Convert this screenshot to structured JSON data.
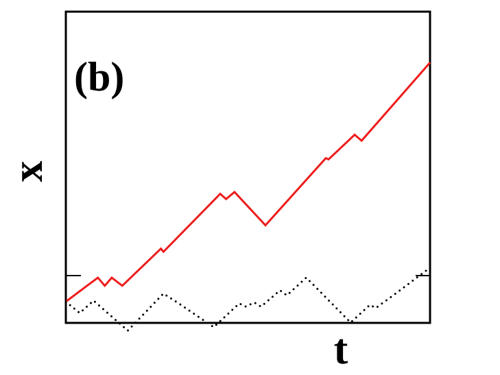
{
  "chart_data": {
    "type": "line",
    "panel_label": "(b)",
    "title": "",
    "xlabel": "t",
    "ylabel": "x",
    "xlim": [
      0,
      100
    ],
    "ylim": [
      -6,
      82
    ],
    "grid": false,
    "legend": "none",
    "reference_y": 0,
    "x_ticks": [],
    "y_ticks": [],
    "series": [
      {
        "color": "#ee1c1c",
        "style": "solid",
        "x": [
          0,
          8.8,
          10.7,
          12.6,
          15.5,
          26.1,
          26.8,
          42.4,
          44.0,
          46.3,
          54.8,
          71.4,
          72.1,
          79.3,
          81.2,
          100
        ],
        "y": [
          0,
          6.8,
          4.5,
          6.8,
          4.5,
          15.0,
          14.1,
          30.5,
          29.0,
          31.0,
          21.6,
          40.6,
          40.2,
          47.2,
          45.5,
          67.6
        ]
      },
      {
        "color": "#000000",
        "style": "dotted",
        "x": [
          0,
          3.8,
          7.6,
          17.0,
          26.8,
          31.6,
          40.6,
          47.6,
          49.5,
          51.7,
          53.6,
          58.8,
          60.7,
          66.0,
          68.8,
          78.2,
          83.5,
          85.1,
          89.4,
          100
        ],
        "y": [
          0,
          -3.2,
          0.3,
          -8.2,
          2.3,
          -0.9,
          -7.2,
          -0.5,
          -1.4,
          -0.2,
          -1.4,
          3.2,
          1.8,
          6.8,
          3.9,
          -5.9,
          -0.9,
          -1.8,
          1.4,
          9.6
        ]
      }
    ]
  }
}
